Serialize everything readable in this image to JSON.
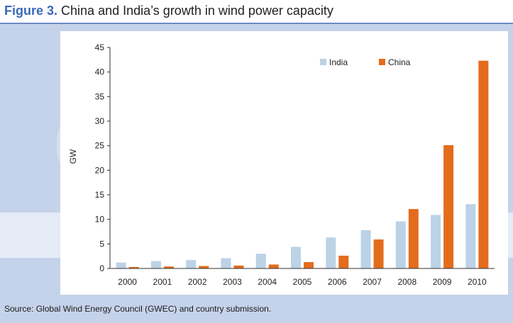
{
  "figure": {
    "label": "Figure 3.",
    "title": "China and India’s growth in wind power capacity",
    "source": "Source: Global Wind Energy Council (GWEC) and country submission."
  },
  "chart_data": {
    "type": "bar",
    "title": "China and India’s growth in wind power capacity",
    "xlabel": "",
    "ylabel": "GW",
    "ylim": [
      0,
      45
    ],
    "yticks": [
      0,
      5,
      10,
      15,
      20,
      25,
      30,
      35,
      40,
      45
    ],
    "legend_position": "top-right",
    "categories": [
      "2000",
      "2001",
      "2002",
      "2003",
      "2004",
      "2005",
      "2006",
      "2007",
      "2008",
      "2009",
      "2010"
    ],
    "series": [
      {
        "name": "India",
        "color": "#bcd2e6",
        "values": [
          1.2,
          1.5,
          1.7,
          2.1,
          3.0,
          4.4,
          6.3,
          7.8,
          9.6,
          10.9,
          13.1
        ]
      },
      {
        "name": "China",
        "color": "#e46c1d",
        "values": [
          0.3,
          0.4,
          0.5,
          0.6,
          0.8,
          1.3,
          2.6,
          5.9,
          12.1,
          25.1,
          42.3
        ]
      }
    ]
  },
  "colors": {
    "india": "#bcd2e6",
    "china": "#e46c1d",
    "title_accent": "#3a68b8",
    "axis": "#333333"
  }
}
